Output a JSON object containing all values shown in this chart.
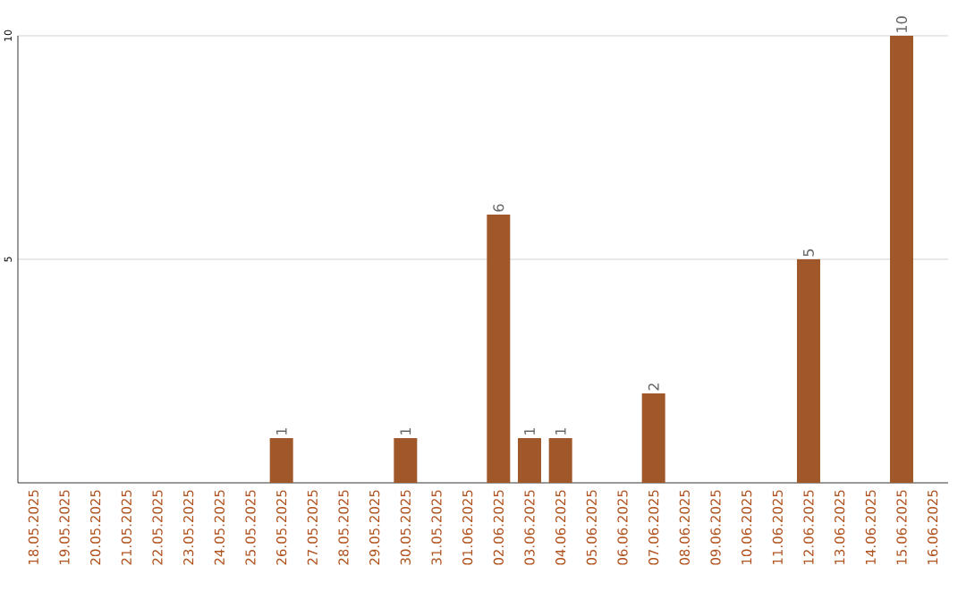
{
  "chart_data": {
    "type": "bar",
    "categories": [
      "18.05.2025",
      "19.05.2025",
      "20.05.2025",
      "21.05.2025",
      "22.05.2025",
      "23.05.2025",
      "24.05.2025",
      "25.05.2025",
      "26.05.2025",
      "27.05.2025",
      "28.05.2025",
      "29.05.2025",
      "30.05.2025",
      "31.05.2025",
      "01.06.2025",
      "02.06.2025",
      "03.06.2025",
      "04.06.2025",
      "05.06.2025",
      "06.06.2025",
      "07.06.2025",
      "08.06.2025",
      "09.06.2025",
      "10.06.2025",
      "11.06.2025",
      "12.06.2025",
      "13.06.2025",
      "14.06.2025",
      "15.06.2025",
      "16.06.2025"
    ],
    "values": [
      0,
      0,
      0,
      0,
      0,
      0,
      0,
      0,
      1,
      0,
      0,
      0,
      1,
      0,
      0,
      6,
      1,
      1,
      0,
      0,
      2,
      0,
      0,
      0,
      0,
      5,
      0,
      0,
      10,
      0
    ],
    "value_labels": [
      null,
      null,
      null,
      null,
      null,
      null,
      null,
      null,
      "1",
      null,
      null,
      null,
      "1",
      null,
      null,
      "6",
      "1",
      "1",
      null,
      null,
      "2",
      null,
      null,
      null,
      null,
      "5",
      null,
      null,
      "10",
      null
    ],
    "color": "#a0572a",
    "ylim": [
      0,
      10
    ],
    "yticks": [
      5,
      10
    ],
    "grid": "y"
  }
}
